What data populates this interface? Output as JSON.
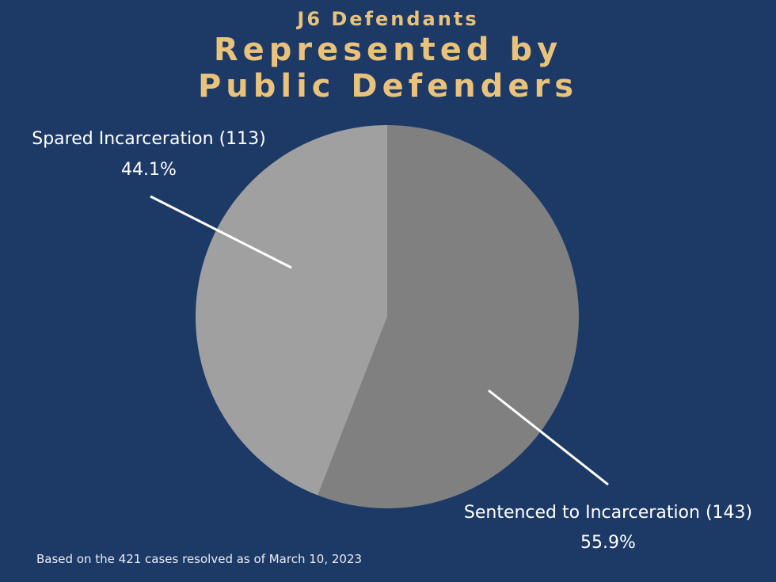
{
  "chart_data": {
    "type": "pie",
    "kicker": "J6 Defendants",
    "title": "Represented by Public Defenders",
    "categories": [
      "Sentenced to Incarceration (143)",
      "Spared Incarceration (113)"
    ],
    "values": [
      55.9,
      44.1
    ],
    "value_labels": [
      "55.9%",
      "44.1%"
    ],
    "colors": [
      "#808080",
      "#a0a0a0"
    ],
    "note": "Based on the 421 cases resolved as of March 10, 2023"
  }
}
